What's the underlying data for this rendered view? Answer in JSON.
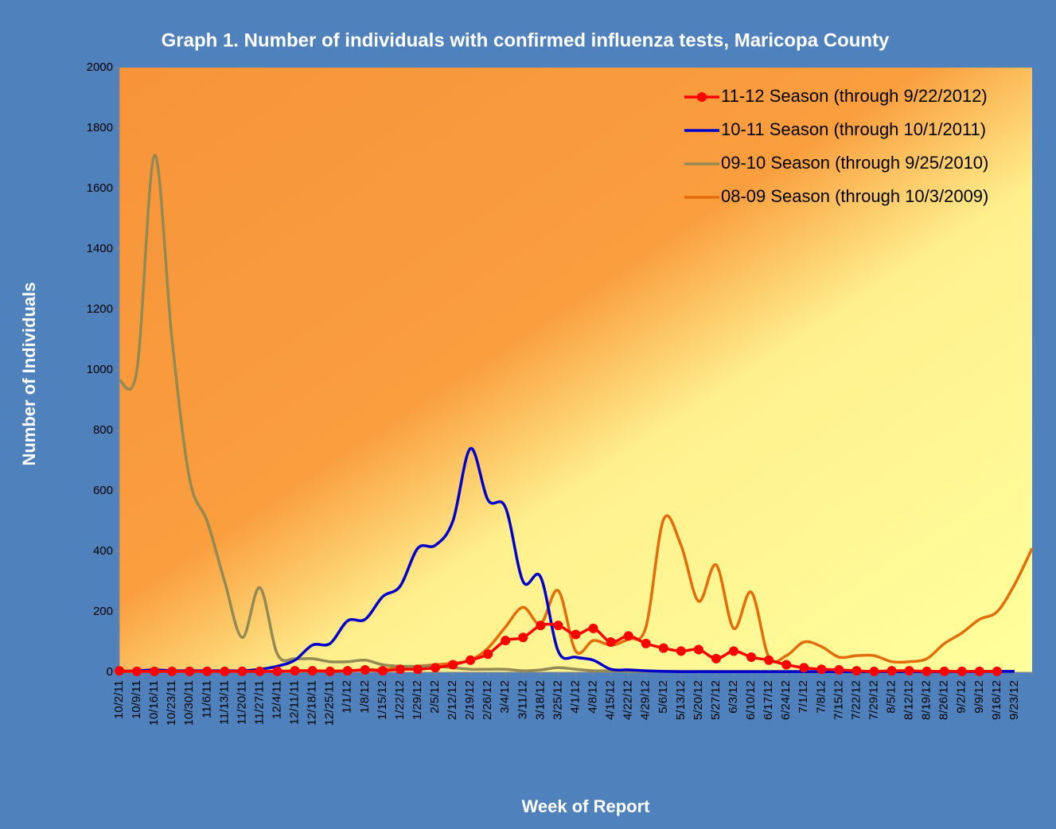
{
  "chart_data": {
    "type": "line",
    "title": "Graph 1. Number of individuals with confirmed influenza tests, Maricopa County",
    "x_label": "Week of Report",
    "y_label": "Number of Individuals",
    "categories": [
      "10/2/11",
      "10/9/11",
      "10/16/11",
      "10/23/11",
      "10/30/11",
      "11/6/11",
      "11/13/11",
      "11/20/11",
      "11/27/11",
      "12/4/11",
      "12/11/11",
      "12/18/11",
      "12/25/11",
      "1/1/12",
      "1/8/12",
      "1/15/12",
      "1/22/12",
      "1/29/12",
      "2/5/12",
      "2/12/12",
      "2/19/12",
      "2/26/12",
      "3/4/12",
      "3/11/12",
      "3/18/12",
      "3/25/12",
      "4/1/12",
      "4/8/12",
      "4/15/12",
      "4/22/12",
      "4/29/12",
      "5/6/12",
      "5/13/12",
      "5/20/12",
      "5/27/12",
      "6/3/12",
      "6/10/12",
      "6/17/12",
      "6/24/12",
      "7/1/12",
      "7/8/12",
      "7/15/12",
      "7/22/12",
      "7/29/12",
      "8/5/12",
      "8/12/12",
      "8/19/12",
      "8/26/12",
      "9/2/12",
      "9/9/12",
      "9/16/12",
      "9/23/12",
      null
    ],
    "ylim": [
      0,
      2000
    ],
    "yticks": [
      0,
      200,
      400,
      600,
      800,
      1000,
      1200,
      1400,
      1600,
      1800,
      2000
    ],
    "smooth": true,
    "legend": "top-right",
    "series": [
      {
        "name": "11-12 Season (through 9/22/2012)",
        "color": "#ff0000",
        "marker": "circle",
        "values": [
          5,
          3,
          3,
          3,
          3,
          3,
          3,
          3,
          3,
          3,
          5,
          5,
          3,
          5,
          8,
          5,
          10,
          10,
          15,
          25,
          40,
          60,
          105,
          115,
          155,
          155,
          125,
          145,
          100,
          120,
          95,
          80,
          70,
          75,
          45,
          70,
          50,
          40,
          25,
          15,
          10,
          8,
          5,
          3,
          5,
          5,
          3,
          3,
          3,
          3,
          3,
          null,
          null
        ]
      },
      {
        "name": "10-11 Season (through 10/1/2011)",
        "color": "#0000cc",
        "values": [
          3,
          5,
          8,
          5,
          5,
          5,
          5,
          5,
          10,
          20,
          40,
          90,
          95,
          170,
          175,
          250,
          285,
          410,
          420,
          500,
          740,
          570,
          545,
          300,
          315,
          70,
          50,
          40,
          10,
          8,
          5,
          3,
          2,
          2,
          2,
          2,
          2,
          2,
          2,
          2,
          2,
          2,
          2,
          2,
          2,
          2,
          2,
          2,
          2,
          2,
          3,
          3,
          null
        ]
      },
      {
        "name": "09-10 Season (through 9/25/2010)",
        "color": "#938953",
        "values": [
          965,
          1000,
          1710,
          1100,
          640,
          500,
          300,
          115,
          280,
          60,
          45,
          45,
          35,
          35,
          40,
          25,
          20,
          20,
          20,
          15,
          10,
          10,
          10,
          5,
          8,
          15,
          10,
          5,
          5,
          3,
          3,
          3,
          3,
          3,
          3,
          3,
          3,
          3,
          3,
          3,
          3,
          3,
          3,
          3,
          3,
          3,
          3,
          3,
          3,
          3,
          3,
          3,
          null
        ]
      },
      {
        "name": "08-09 Season (through 10/3/2009)",
        "color": "#e46c0a",
        "values": [
          2,
          2,
          3,
          3,
          3,
          3,
          3,
          3,
          3,
          3,
          3,
          5,
          5,
          5,
          8,
          10,
          15,
          20,
          25,
          30,
          40,
          80,
          150,
          215,
          160,
          270,
          70,
          105,
          90,
          110,
          150,
          505,
          420,
          235,
          355,
          145,
          265,
          50,
          55,
          100,
          85,
          50,
          55,
          55,
          35,
          35,
          45,
          95,
          130,
          175,
          200,
          290,
          410
        ]
      }
    ]
  }
}
